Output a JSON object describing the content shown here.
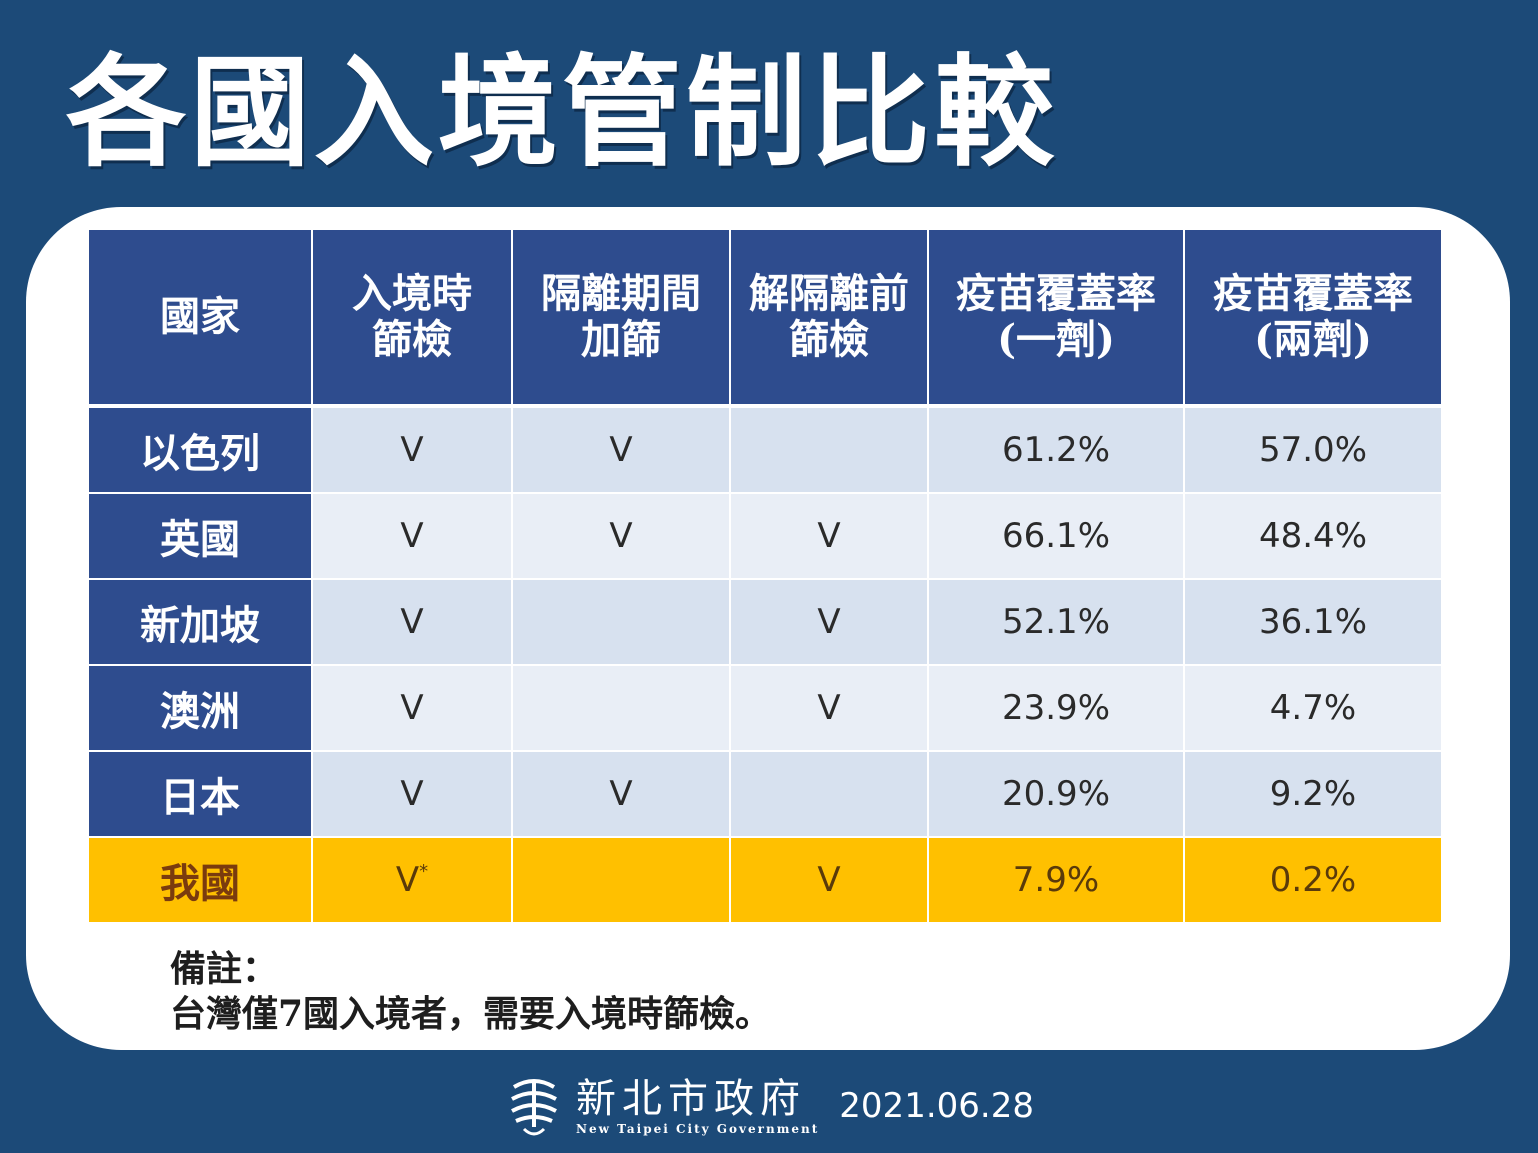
{
  "title": "各國入境管制比較",
  "chart_data": {
    "type": "table",
    "columns": [
      {
        "line1": "國家",
        "line2": ""
      },
      {
        "line1": "入境時",
        "line2": "篩檢"
      },
      {
        "line1": "隔離期間",
        "line2": "加篩"
      },
      {
        "line1": "解隔離前",
        "line2": "篩檢"
      },
      {
        "line1": "疫苗覆蓋率",
        "line2": "(一劑)"
      },
      {
        "line1": "疫苗覆蓋率",
        "line2": "(兩劑)"
      }
    ],
    "rows": [
      {
        "country": "以色列",
        "entry_test": "V",
        "quarantine_test": "V",
        "release_test": "",
        "dose1": "61.2%",
        "dose2": "57.0%"
      },
      {
        "country": "英國",
        "entry_test": "V",
        "quarantine_test": "V",
        "release_test": "V",
        "dose1": "66.1%",
        "dose2": "48.4%"
      },
      {
        "country": "新加坡",
        "entry_test": "V",
        "quarantine_test": "",
        "release_test": "V",
        "dose1": "52.1%",
        "dose2": "36.1%"
      },
      {
        "country": "澳洲",
        "entry_test": "V",
        "quarantine_test": "",
        "release_test": "V",
        "dose1": "23.9%",
        "dose2": "4.7%"
      },
      {
        "country": "日本",
        "entry_test": "V",
        "quarantine_test": "V",
        "release_test": "",
        "dose1": "20.9%",
        "dose2": "9.2%"
      },
      {
        "country": "我國",
        "entry_test": "V",
        "entry_test_mark": "*",
        "quarantine_test": "",
        "release_test": "V",
        "dose1": "7.9%",
        "dose2": "0.2%"
      }
    ],
    "colors": {
      "header": "#2e4c8e",
      "highlight": "#ffc000",
      "row": "#d7e1ef",
      "row_alt": "#e9eef6"
    }
  },
  "note": {
    "title": "備註：",
    "body": "台灣僅7國入境者，需要入境時篩檢。"
  },
  "footer": {
    "org_zh": "新北市政府",
    "org_en": "New Taipei City Government",
    "date": "2021.06.28",
    "logo_icon": "new-taipei-logo-icon"
  }
}
